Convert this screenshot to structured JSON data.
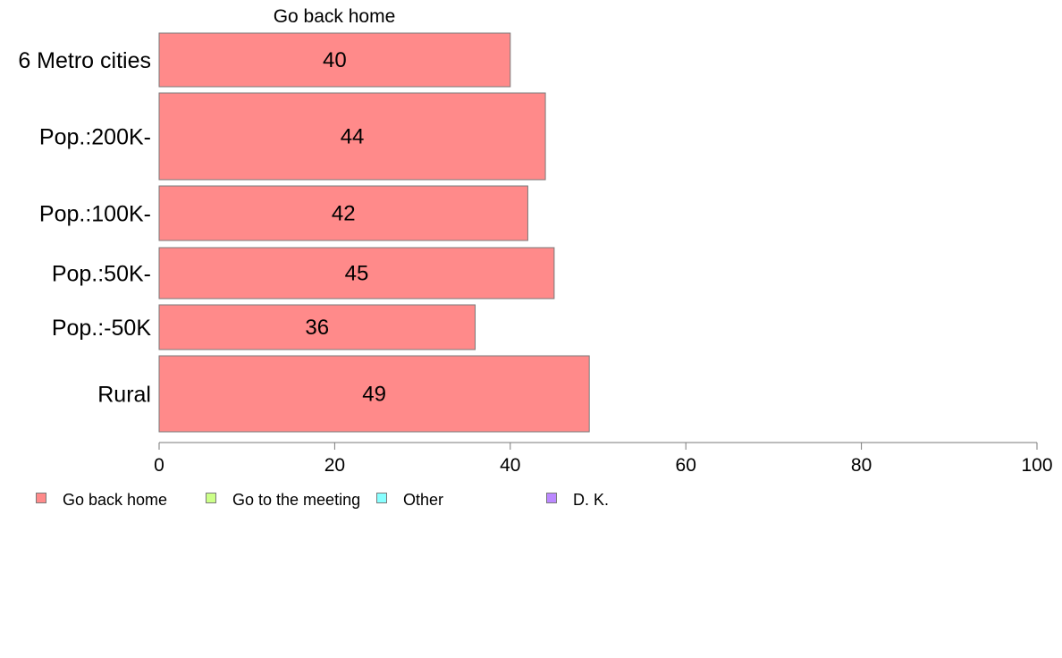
{
  "chart_data": {
    "type": "bar",
    "orientation": "horizontal",
    "stacked": true,
    "title": "Go back home",
    "categories": [
      "6 Metro cities",
      "Pop.:200K-",
      "Pop.:100K-",
      "Pop.:50K-",
      "Pop.:-50K",
      "Rural"
    ],
    "series": [
      {
        "name": "Go back home",
        "values": [
          40,
          44,
          42,
          45,
          36,
          49
        ],
        "color": "#ff8a8a"
      }
    ],
    "data_labels": [
      "40",
      "44",
      "42",
      "45",
      "36",
      "49"
    ],
    "xlim": [
      0,
      100
    ],
    "x_ticks": [
      0,
      20,
      40,
      60,
      80,
      100
    ],
    "legend": {
      "position": "bottom",
      "entries": [
        {
          "label": "Go back home",
          "color": "#ff8a8a"
        },
        {
          "label": "Go to the meeting",
          "color": "#ccff88"
        },
        {
          "label": "Other",
          "color": "#88ffff"
        },
        {
          "label": "D. K.",
          "color": "#bb88ff"
        }
      ]
    },
    "grid": false
  }
}
